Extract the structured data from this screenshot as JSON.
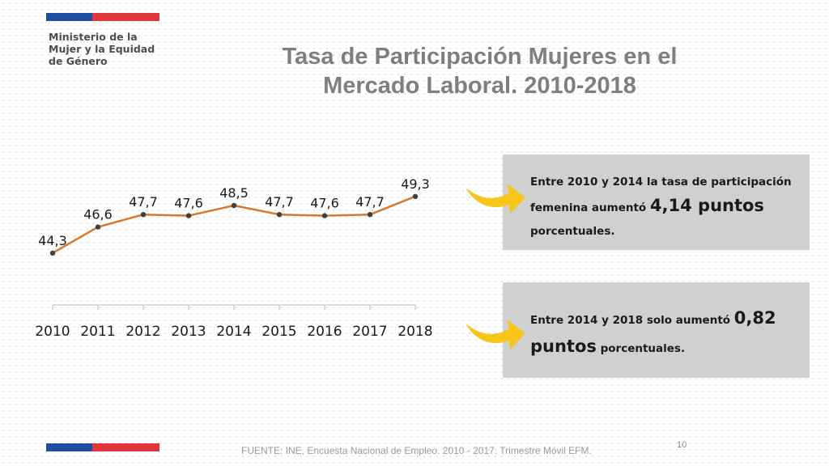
{
  "header": {
    "org_line1": "Ministerio de la",
    "org_line2": "Mujer y la Equidad",
    "org_line3": "de Género",
    "flag_colors": {
      "blue": "#1f4fa0",
      "red": "#e0373f"
    }
  },
  "title": {
    "line1": "Tasa de Participación Mujeres en el",
    "line2": "Mercado Laboral. 2010-2018"
  },
  "chart_data": {
    "type": "line",
    "title": "",
    "xlabel": "",
    "ylabel": "",
    "categories": [
      "2010",
      "2011",
      "2012",
      "2013",
      "2014",
      "2015",
      "2016",
      "2017",
      "2018"
    ],
    "series": [
      {
        "values": [
          44.3,
          46.6,
          47.7,
          47.6,
          48.5,
          47.7,
          47.6,
          47.7,
          49.3
        ],
        "labels": [
          "44,3",
          "46,6",
          "47,7",
          "47,6",
          "48,5",
          "47,7",
          "47,6",
          "47,7",
          "49,3"
        ],
        "color": "#d9772a"
      }
    ],
    "ylim": [
      44,
      49.5
    ],
    "grid": false,
    "legend": "none",
    "y_axis_visible": false
  },
  "callouts": [
    {
      "text_before": "Entre 2010 y 2014 la tasa de participación femenina aumentó ",
      "highlight": "4,14 puntos",
      "text_after": " porcentuales."
    },
    {
      "text_before": "Entre 2014 y 2018 solo aumentó ",
      "highlight": "0,82 puntos",
      "text_after": " porcentuales."
    }
  ],
  "arrow_icon": "yellow-arrow-icon",
  "arrow_color": "#f5c518",
  "footer": {
    "source": "FUENTE: INE, Encuesta Nacional de Empleo. 2010 - 2017. Trimestre Móvil EFM.",
    "page_number": "10"
  }
}
